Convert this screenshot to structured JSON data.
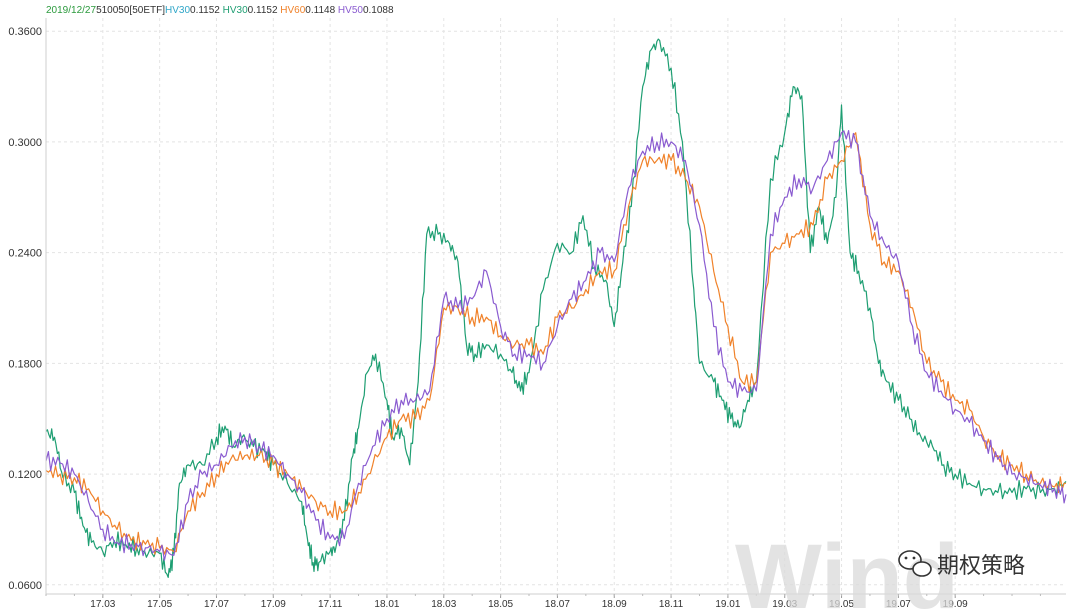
{
  "header": {
    "date": "2019/12/27",
    "code": "510050[50ETF]",
    "items": [
      {
        "label": "HV30",
        "value": "0.1152",
        "color": "#2fa6c8"
      },
      {
        "label": "HV30",
        "value": "0.1152",
        "color": "#1e9e72"
      },
      {
        "label": "HV60",
        "value": "0.1148",
        "color": "#f0822a"
      },
      {
        "label": "HV50",
        "value": "0.1088",
        "color": "#8a5bd0"
      }
    ]
  },
  "watermark": {
    "logo_text": "Wind",
    "wechat_text": "期权策略",
    "icon": "wechat-icon"
  },
  "chart_data": {
    "type": "line",
    "ylim": [
      0.055,
      0.365
    ],
    "yticks": [
      0.06,
      0.12,
      0.18,
      0.24,
      0.3,
      0.36
    ],
    "ytick_labels": [
      "0.0600",
      "0.1200",
      "0.1800",
      "0.2400",
      "0.3000",
      "0.3600"
    ],
    "xlim": [
      0.0,
      35.9
    ],
    "x_ticks": [
      2,
      4,
      6,
      8,
      10,
      12,
      14,
      16,
      18,
      20,
      22,
      24,
      26,
      28,
      30,
      32
    ],
    "x_tick_labels": [
      "17.03",
      "17.05",
      "17.07",
      "17.09",
      "17.11",
      "18.01",
      "18.03",
      "18.05",
      "18.07",
      "18.09",
      "18.11",
      "19.01",
      "19.03",
      "19.05",
      "19.07",
      "19.09"
    ],
    "grid": true,
    "series": [
      {
        "name": "HV30",
        "color": "#1e9e72",
        "x": [
          0,
          0.3,
          0.6,
          1,
          1.3,
          1.6,
          2,
          2.4,
          2.8,
          3.2,
          3.6,
          4,
          4.3,
          4.5,
          4.7,
          5,
          5.5,
          6,
          6.3,
          6.6,
          6.9,
          7.3,
          7.7,
          8,
          8.5,
          9,
          9.2,
          9.4,
          9.6,
          10,
          10.2,
          10.5,
          10.8,
          11,
          11.3,
          11.6,
          12,
          12.2,
          12.5,
          12.8,
          13.1,
          13.4,
          13.8,
          14.2,
          14.5,
          14.8,
          15.1,
          15.5,
          16,
          16.4,
          16.7,
          17,
          17.5,
          18,
          18.5,
          18.9,
          19.3,
          19.7,
          20,
          20.3,
          20.6,
          21,
          21.3,
          21.6,
          22,
          22.4,
          22.8,
          23,
          23.5,
          23.8,
          24.1,
          24.4,
          24.7,
          25,
          25.5,
          26,
          26.3,
          26.6,
          26.9,
          27.2,
          27.5,
          27.8,
          28,
          28.3,
          28.6,
          29,
          29.3,
          29.6,
          30,
          30.4,
          30.8,
          31.2,
          31.6,
          32,
          32.5,
          33,
          33.5,
          34,
          34.5,
          35,
          35.5,
          35.9
        ],
        "values": [
          0.143,
          0.14,
          0.118,
          0.11,
          0.092,
          0.083,
          0.078,
          0.084,
          0.082,
          0.08,
          0.077,
          0.077,
          0.064,
          0.077,
          0.115,
          0.125,
          0.125,
          0.14,
          0.146,
          0.135,
          0.14,
          0.135,
          0.132,
          0.125,
          0.115,
          0.105,
          0.085,
          0.072,
          0.072,
          0.078,
          0.08,
          0.095,
          0.13,
          0.145,
          0.175,
          0.185,
          0.16,
          0.14,
          0.145,
          0.125,
          0.17,
          0.25,
          0.25,
          0.245,
          0.235,
          0.19,
          0.185,
          0.19,
          0.185,
          0.175,
          0.165,
          0.175,
          0.22,
          0.245,
          0.24,
          0.26,
          0.232,
          0.225,
          0.2,
          0.235,
          0.265,
          0.33,
          0.35,
          0.355,
          0.34,
          0.3,
          0.22,
          0.18,
          0.17,
          0.16,
          0.15,
          0.145,
          0.16,
          0.17,
          0.28,
          0.305,
          0.33,
          0.325,
          0.24,
          0.265,
          0.245,
          0.27,
          0.32,
          0.24,
          0.23,
          0.21,
          0.18,
          0.17,
          0.16,
          0.15,
          0.14,
          0.135,
          0.125,
          0.12,
          0.115,
          0.112,
          0.11,
          0.11,
          0.112,
          0.11,
          0.112,
          0.116
        ]
      },
      {
        "name": "HV60",
        "color": "#f0822a",
        "x": [
          0,
          0.5,
          1,
          1.5,
          2,
          2.5,
          3,
          3.5,
          4,
          4.5,
          5,
          5.5,
          6,
          6.5,
          7,
          7.5,
          8,
          8.5,
          9,
          9.5,
          10,
          10.5,
          11,
          11.5,
          12,
          12.5,
          13,
          13.5,
          14,
          14.5,
          15,
          15.5,
          16,
          16.5,
          17,
          17.5,
          18,
          18.5,
          19,
          19.5,
          20,
          20.5,
          21,
          21.5,
          22,
          22.5,
          23,
          23.5,
          24,
          24.5,
          25,
          25.5,
          26,
          26.5,
          27,
          27.5,
          28,
          28.5,
          29,
          29.5,
          30,
          30.5,
          31,
          31.5,
          32,
          32.5,
          33,
          33.5,
          34,
          34.5,
          35,
          35.5,
          35.9
        ],
        "values": [
          0.122,
          0.12,
          0.118,
          0.112,
          0.1,
          0.09,
          0.084,
          0.082,
          0.08,
          0.078,
          0.1,
          0.11,
          0.12,
          0.128,
          0.13,
          0.13,
          0.125,
          0.12,
          0.112,
          0.105,
          0.1,
          0.1,
          0.11,
          0.125,
          0.14,
          0.15,
          0.15,
          0.16,
          0.21,
          0.21,
          0.205,
          0.205,
          0.195,
          0.19,
          0.19,
          0.185,
          0.205,
          0.21,
          0.22,
          0.23,
          0.23,
          0.265,
          0.29,
          0.29,
          0.29,
          0.28,
          0.265,
          0.23,
          0.2,
          0.17,
          0.17,
          0.24,
          0.245,
          0.25,
          0.255,
          0.28,
          0.29,
          0.305,
          0.255,
          0.235,
          0.23,
          0.21,
          0.18,
          0.17,
          0.16,
          0.155,
          0.14,
          0.13,
          0.125,
          0.12,
          0.115,
          0.113,
          0.115
        ]
      },
      {
        "name": "HV50",
        "color": "#8a5bd0",
        "x": [
          0,
          0.5,
          1,
          1.5,
          2,
          2.5,
          3,
          3.5,
          4,
          4.5,
          5,
          5.5,
          6,
          6.5,
          7,
          7.5,
          8,
          8.5,
          9,
          9.5,
          10,
          10.5,
          11,
          11.5,
          12,
          12.5,
          13,
          13.5,
          14,
          14.5,
          15,
          15.5,
          16,
          16.5,
          17,
          17.5,
          18,
          18.5,
          19,
          19.5,
          20,
          20.5,
          21,
          21.5,
          22,
          22.5,
          23,
          23.5,
          24,
          24.5,
          25,
          25.5,
          26,
          26.5,
          27,
          27.5,
          28,
          28.5,
          29,
          29.5,
          30,
          30.5,
          31,
          31.5,
          32,
          32.5,
          33,
          33.5,
          34,
          34.5,
          35,
          35.5,
          35.9
        ],
        "values": [
          0.127,
          0.126,
          0.12,
          0.105,
          0.09,
          0.083,
          0.082,
          0.08,
          0.078,
          0.076,
          0.105,
          0.12,
          0.125,
          0.135,
          0.14,
          0.135,
          0.13,
          0.12,
          0.11,
          0.095,
          0.085,
          0.085,
          0.115,
          0.135,
          0.15,
          0.16,
          0.16,
          0.165,
          0.215,
          0.21,
          0.215,
          0.23,
          0.2,
          0.185,
          0.185,
          0.18,
          0.2,
          0.215,
          0.225,
          0.24,
          0.235,
          0.275,
          0.295,
          0.3,
          0.3,
          0.29,
          0.255,
          0.2,
          0.17,
          0.165,
          0.165,
          0.25,
          0.27,
          0.28,
          0.275,
          0.29,
          0.305,
          0.3,
          0.26,
          0.245,
          0.235,
          0.2,
          0.175,
          0.165,
          0.155,
          0.148,
          0.138,
          0.128,
          0.12,
          0.118,
          0.114,
          0.112,
          0.109
        ]
      }
    ]
  }
}
